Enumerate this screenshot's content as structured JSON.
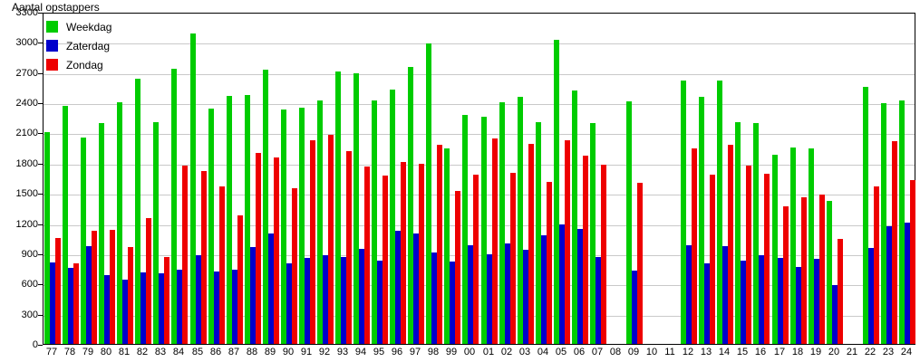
{
  "title": "Aantal opstappers",
  "colors": {
    "weekdag": "#00cc00",
    "zaterdag": "#0000cc",
    "zondag": "#ee0000",
    "gridline": "#c9c9c9",
    "axis": "#000000"
  },
  "chart_data": {
    "type": "bar",
    "title": "Aantal opstappers",
    "xlabel": "",
    "ylabel": "Aantal opstappers",
    "ylim": [
      0,
      3300
    ],
    "ytick_step": 300,
    "grid": true,
    "legend_position": "top-left-inside",
    "categories": [
      "77",
      "78",
      "79",
      "80",
      "81",
      "82",
      "83",
      "84",
      "85",
      "86",
      "87",
      "88",
      "89",
      "90",
      "91",
      "92",
      "93",
      "94",
      "95",
      "96",
      "97",
      "98",
      "99",
      "00",
      "01",
      "02",
      "03",
      "04",
      "05",
      "06",
      "07",
      "08",
      "09",
      "10",
      "11",
      "12",
      "13",
      "14",
      "15",
      "16",
      "17",
      "18",
      "19",
      "20",
      "21",
      "22",
      "23",
      "24"
    ],
    "series": [
      {
        "name": "Weekdag",
        "color": "#00cc00",
        "values": [
          2110,
          2370,
          2060,
          2200,
          2410,
          2640,
          2210,
          2740,
          3090,
          2350,
          2470,
          2480,
          2730,
          2340,
          2360,
          2430,
          2720,
          2700,
          2430,
          2540,
          2760,
          2990,
          1950,
          2280,
          2270,
          2410,
          2460,
          2210,
          3030,
          2530,
          2200,
          null,
          2420,
          null,
          null,
          2630,
          2460,
          2630,
          2210,
          2200,
          1890,
          1960,
          1950,
          1430,
          null,
          2560,
          2400,
          2430
        ]
      },
      {
        "name": "Zaterdag",
        "color": "#0000cc",
        "values": [
          820,
          760,
          980,
          690,
          650,
          720,
          710,
          750,
          890,
          730,
          750,
          970,
          1110,
          810,
          860,
          890,
          870,
          950,
          840,
          1130,
          1110,
          920,
          830,
          990,
          900,
          1010,
          940,
          1090,
          1200,
          1150,
          870,
          null,
          740,
          null,
          null,
          990,
          810,
          980,
          840,
          890,
          860,
          770,
          850,
          590,
          null,
          960,
          1180,
          1210
        ]
      },
      {
        "name": "Zondag",
        "color": "#ee0000",
        "values": [
          1060,
          810,
          1130,
          1140,
          970,
          1260,
          870,
          1780,
          1730,
          1570,
          1290,
          1910,
          1860,
          1560,
          2030,
          2090,
          1920,
          1770,
          1680,
          1820,
          1800,
          1990,
          1530,
          1690,
          2050,
          1710,
          2000,
          1620,
          2030,
          1880,
          1790,
          null,
          1610,
          null,
          null,
          1950,
          1690,
          1990,
          1780,
          1700,
          1380,
          1470,
          1490,
          1050,
          null,
          1570,
          2020,
          1640
        ]
      }
    ]
  }
}
